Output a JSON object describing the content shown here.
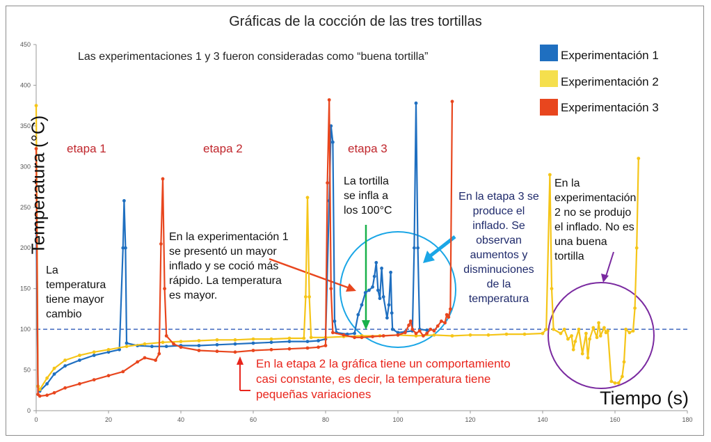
{
  "chart_data": {
    "type": "line",
    "title": "Gráficas de la cocción de las tres tortillas",
    "subtitle": "Las experimentaciones 1 y 3 fueron consideradas como “buena tortilla”",
    "xlabel": "Tiempo (s)",
    "ylabel": "Temperatura (°C)",
    "xlim": [
      0,
      180
    ],
    "ylim": [
      0,
      450
    ],
    "xticks": [
      0,
      20,
      40,
      60,
      80,
      100,
      120,
      140,
      160,
      180
    ],
    "yticks": [
      0,
      50,
      100,
      150,
      200,
      250,
      300,
      350,
      400,
      450
    ],
    "reference_line": 100,
    "grid": false,
    "legend_position": "top-right",
    "series": [
      {
        "name": "Experimentación 1",
        "color": "#1f6fc0",
        "points": [
          [
            0,
            230
          ],
          [
            0.5,
            30
          ],
          [
            1,
            24
          ],
          [
            3,
            33
          ],
          [
            5,
            45
          ],
          [
            8,
            55
          ],
          [
            12,
            62
          ],
          [
            16,
            68
          ],
          [
            20,
            72
          ],
          [
            23,
            75
          ],
          [
            24,
            200
          ],
          [
            24.3,
            258
          ],
          [
            24.7,
            200
          ],
          [
            25,
            83
          ],
          [
            28,
            80
          ],
          [
            32,
            79
          ],
          [
            36,
            79
          ],
          [
            40,
            80
          ],
          [
            45,
            80
          ],
          [
            50,
            81
          ],
          [
            55,
            82
          ],
          [
            60,
            83
          ],
          [
            65,
            84
          ],
          [
            70,
            85
          ],
          [
            75,
            85
          ],
          [
            78,
            86
          ],
          [
            80,
            88
          ],
          [
            81,
            258
          ],
          [
            81.5,
            350
          ],
          [
            82,
            330
          ],
          [
            82.5,
            110
          ],
          [
            83,
            96
          ],
          [
            86,
            94
          ],
          [
            88,
            95
          ],
          [
            89,
            118
          ],
          [
            90,
            130
          ],
          [
            91,
            145
          ],
          [
            92,
            148
          ],
          [
            93,
            152
          ],
          [
            93.5,
            165
          ],
          [
            94,
            182
          ],
          [
            94.5,
            148
          ],
          [
            95,
            138
          ],
          [
            95.5,
            175
          ],
          [
            96,
            140
          ],
          [
            97,
            114
          ],
          [
            97.5,
            130
          ],
          [
            98,
            170
          ],
          [
            98.3,
            120
          ],
          [
            98.5,
            100
          ],
          [
            100,
            96
          ],
          [
            102,
            97
          ],
          [
            104,
            98
          ],
          [
            104.5,
            200
          ],
          [
            105,
            378
          ],
          [
            105.5,
            200
          ],
          [
            106,
            100
          ],
          [
            108,
            99
          ]
        ]
      },
      {
        "name": "Experimentación 2",
        "color": "#f5c518",
        "points": [
          [
            0,
            375
          ],
          [
            0.5,
            30
          ],
          [
            1,
            26
          ],
          [
            3,
            40
          ],
          [
            5,
            52
          ],
          [
            8,
            62
          ],
          [
            12,
            68
          ],
          [
            16,
            72
          ],
          [
            20,
            75
          ],
          [
            25,
            79
          ],
          [
            30,
            82
          ],
          [
            35,
            84
          ],
          [
            40,
            85
          ],
          [
            45,
            86
          ],
          [
            50,
            87
          ],
          [
            55,
            87
          ],
          [
            60,
            88
          ],
          [
            65,
            88
          ],
          [
            70,
            89
          ],
          [
            74,
            89
          ],
          [
            74.5,
            140
          ],
          [
            75,
            262
          ],
          [
            75.5,
            140
          ],
          [
            76,
            90
          ],
          [
            80,
            90
          ],
          [
            85,
            91
          ],
          [
            90,
            92
          ],
          [
            95,
            92
          ],
          [
            100,
            93
          ],
          [
            105,
            92
          ],
          [
            110,
            93
          ],
          [
            115,
            92
          ],
          [
            120,
            93
          ],
          [
            125,
            93
          ],
          [
            130,
            94
          ],
          [
            135,
            94
          ],
          [
            140,
            95
          ],
          [
            141,
            100
          ],
          [
            142,
            290
          ],
          [
            142.5,
            150
          ],
          [
            143,
            100
          ],
          [
            145,
            95
          ],
          [
            146,
            100
          ],
          [
            147,
            88
          ],
          [
            148,
            92
          ],
          [
            148.5,
            75
          ],
          [
            149,
            85
          ],
          [
            150,
            100
          ],
          [
            151,
            70
          ],
          [
            152,
            95
          ],
          [
            152.5,
            65
          ],
          [
            153,
            88
          ],
          [
            154,
            102
          ],
          [
            155,
            90
          ],
          [
            155.5,
            108
          ],
          [
            156,
            92
          ],
          [
            157,
            102
          ],
          [
            157.5,
            96
          ],
          [
            158,
            98
          ],
          [
            159,
            36
          ],
          [
            160,
            34
          ],
          [
            161,
            34
          ],
          [
            162,
            42
          ],
          [
            162.5,
            60
          ],
          [
            163,
            100
          ],
          [
            164,
            96
          ],
          [
            165,
            98
          ],
          [
            165.5,
            126
          ],
          [
            166,
            200
          ],
          [
            166.5,
            310
          ]
        ]
      },
      {
        "name": "Experimentación 3",
        "color": "#e8461e",
        "points": [
          [
            0,
            322
          ],
          [
            0.5,
            20
          ],
          [
            1,
            18
          ],
          [
            3,
            19
          ],
          [
            5,
            22
          ],
          [
            8,
            28
          ],
          [
            12,
            33
          ],
          [
            16,
            38
          ],
          [
            20,
            43
          ],
          [
            24,
            48
          ],
          [
            28,
            60
          ],
          [
            30,
            65
          ],
          [
            33,
            62
          ],
          [
            34,
            70
          ],
          [
            34.5,
            205
          ],
          [
            35,
            285
          ],
          [
            35.5,
            150
          ],
          [
            36,
            92
          ],
          [
            38,
            82
          ],
          [
            40,
            78
          ],
          [
            45,
            74
          ],
          [
            50,
            73
          ],
          [
            55,
            72
          ],
          [
            60,
            74
          ],
          [
            65,
            75
          ],
          [
            70,
            76
          ],
          [
            75,
            77
          ],
          [
            78,
            78
          ],
          [
            80,
            80
          ],
          [
            80.5,
            280
          ],
          [
            81,
            382
          ],
          [
            81.5,
            150
          ],
          [
            82,
            96
          ],
          [
            85,
            93
          ],
          [
            88,
            90
          ],
          [
            90,
            90
          ],
          [
            93,
            91
          ],
          [
            96,
            92
          ],
          [
            100,
            93
          ],
          [
            102,
            96
          ],
          [
            103,
            105
          ],
          [
            103.5,
            110
          ],
          [
            104,
            100
          ],
          [
            105,
            95
          ],
          [
            106,
            98
          ],
          [
            107,
            92
          ],
          [
            108,
            95
          ],
          [
            109,
            100
          ],
          [
            110,
            98
          ],
          [
            111,
            104
          ],
          [
            112,
            110
          ],
          [
            113,
            108
          ],
          [
            113.5,
            118
          ],
          [
            114,
            115
          ],
          [
            114.5,
            125
          ],
          [
            115,
            380
          ]
        ]
      }
    ]
  },
  "annotations": {
    "etapa1": "etapa 1",
    "etapa2": "etapa 2",
    "etapa3": "etapa 3",
    "la_temperatura": "La\ntemperatura\ntiene mayor\ncambio",
    "infla": "La tortilla\nse infla a\nlos 100°C",
    "exp1_note": "En la experimentación 1\nse presentó un mayor\ninflado y se coció más\nrápido. La temperatura\nes mayor.",
    "etapa3_note": "En la etapa 3 se\nproduce el\ninflado. Se\nobservan\naumentos y\ndisminuciones\nde la\ntemperatura",
    "exp2_note": "En la\nexperimentación\n2 no se produjo\nel inflado. No es\nuna buena\ntortilla",
    "etapa2_note": "En la etapa 2 la gráfica tiene un comportamiento\ncasi constante, es decir, la temperatura tiene\npequeñas variaciones"
  }
}
